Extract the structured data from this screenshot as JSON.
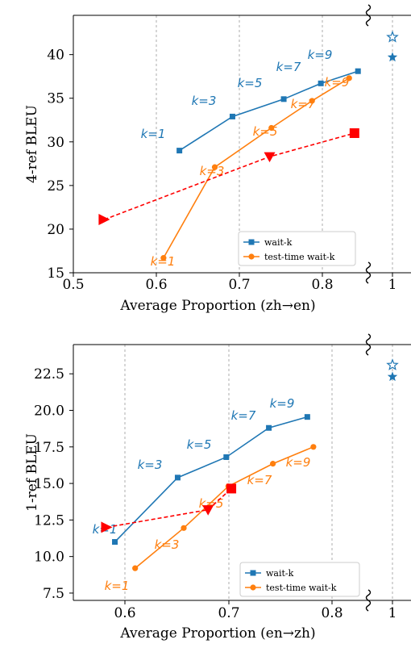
{
  "colors": {
    "waitk": "#1f77b4",
    "testtime": "#ff7f0e",
    "red": "#ff0000",
    "grid": "#999999"
  },
  "legend": {
    "waitk_label": "wait-k",
    "testtime_label": "test-time wait-k"
  },
  "chart_data": [
    {
      "type": "line",
      "xlabel": "Average Proportion (zh→en)",
      "ylabel": "4-ref BLEU",
      "xlim": [
        0.5,
        0.83
      ],
      "ylim": [
        15,
        44.5
      ],
      "xticks": [
        "0.5",
        "0.6",
        "0.7",
        "0.8"
      ],
      "yticks": [
        "15",
        "20",
        "25",
        "30",
        "35",
        "40"
      ],
      "full_sentence_tick": "1",
      "series": [
        {
          "name": "wait-k",
          "x": [
            0.62,
            0.68,
            0.738,
            0.78,
            0.822
          ],
          "y": [
            29.0,
            32.9,
            34.9,
            36.7,
            38.1
          ],
          "point_labels": [
            "k=1",
            "k=3",
            "k=5",
            "k=7",
            "k=9"
          ]
        },
        {
          "name": "test-time wait-k",
          "x": [
            0.602,
            0.66,
            0.724,
            0.77,
            0.812
          ],
          "y": [
            16.7,
            27.1,
            31.6,
            34.7,
            37.3
          ],
          "point_labels": [
            "k=1",
            "k=3",
            "k=5",
            "k=7",
            "k=9"
          ]
        },
        {
          "x": [
            0.535,
            0.722,
            0.818
          ],
          "y": [
            21.1,
            28.3,
            31.0
          ]
        }
      ],
      "full_sentence_points": [
        {
          "y": 42.0
        },
        {
          "y": 39.7
        }
      ]
    },
    {
      "type": "line",
      "xlabel": "Average Proportion (en→zh)",
      "ylabel": "1-ref BLEU",
      "xlim": [
        0.547,
        0.835
      ],
      "ylim": [
        7.0,
        24.5
      ],
      "xticks": [
        "0.6",
        "0.7",
        "0.8"
      ],
      "yticks": [
        "7.5",
        "10.0",
        "12.5",
        "15.0",
        "17.5",
        "20.0",
        "22.5"
      ],
      "full_sentence_tick": "1",
      "series": [
        {
          "name": "wait-k",
          "x": [
            0.588,
            0.65,
            0.698,
            0.74,
            0.778
          ],
          "y": [
            11.0,
            15.4,
            16.8,
            18.8,
            19.55
          ],
          "point_labels": [
            "k=1",
            "k=3",
            "k=5",
            "k=7",
            "k=9"
          ]
        },
        {
          "name": "test-time wait-k",
          "x": [
            0.608,
            0.656,
            0.7,
            0.744,
            0.784
          ],
          "y": [
            9.2,
            11.95,
            14.8,
            16.35,
            17.5
          ],
          "point_labels": [
            "k=1",
            "k=3",
            "k=5",
            "k=7",
            "k=9"
          ]
        },
        {
          "x": [
            0.58,
            0.68,
            0.703
          ],
          "y": [
            12.0,
            13.2,
            14.65
          ]
        }
      ],
      "full_sentence_points": [
        {
          "y": 23.1
        },
        {
          "y": 22.3
        }
      ]
    }
  ]
}
